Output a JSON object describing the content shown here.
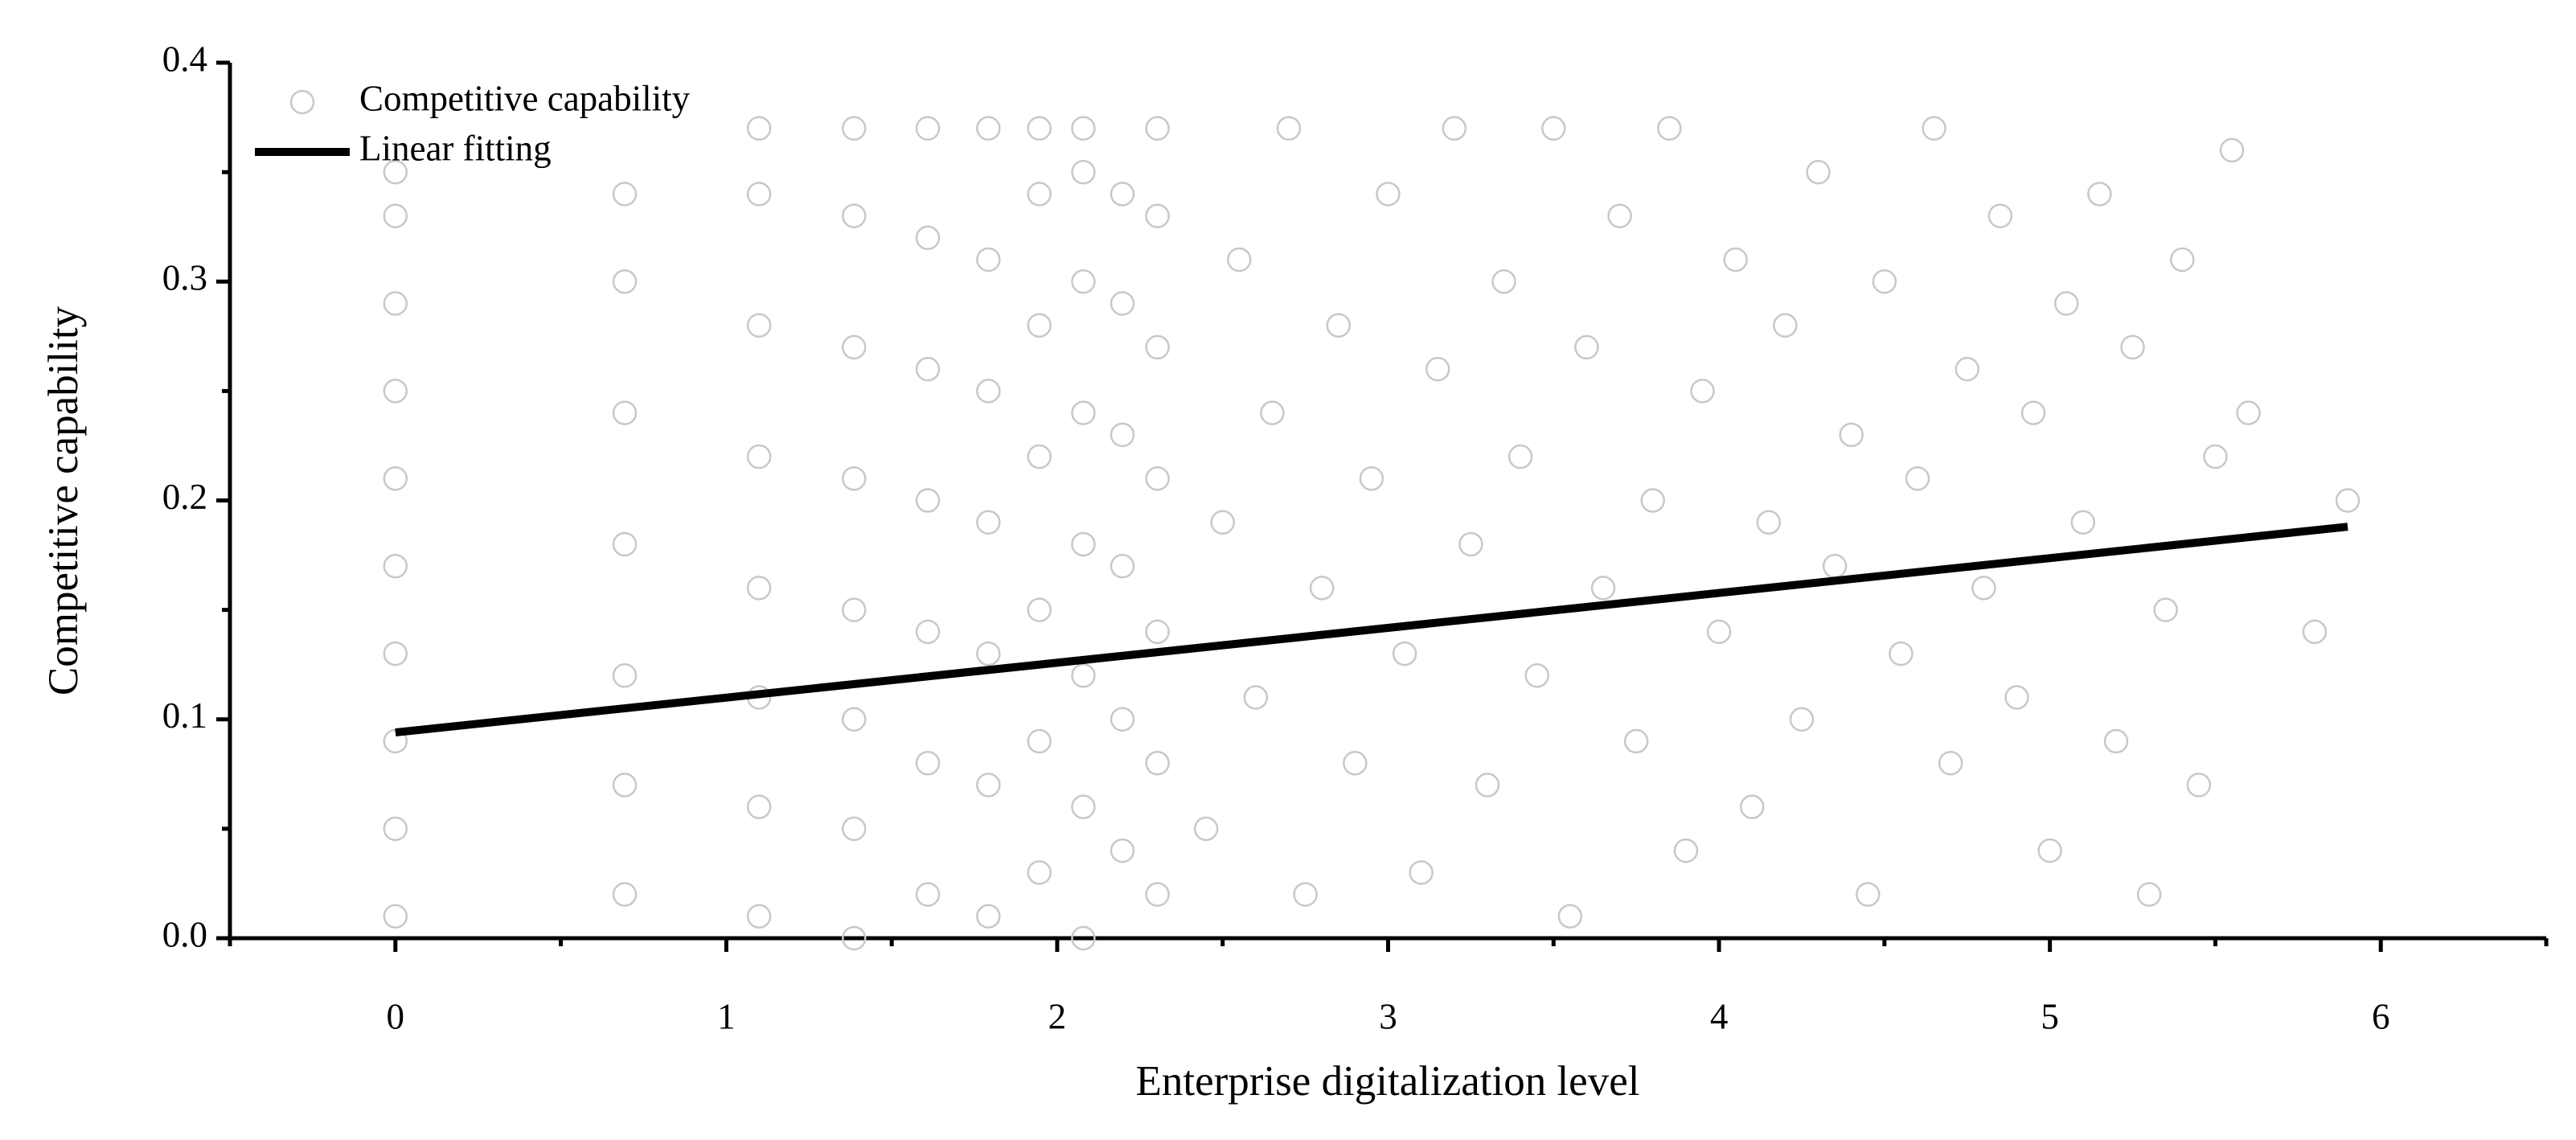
{
  "chart_data": {
    "type": "scatter",
    "xlabel": "Enterprise digitalization level",
    "ylabel": "Competitive capability",
    "xlim": [
      -0.5,
      6.5
    ],
    "xticks": [
      0,
      1,
      2,
      3,
      4,
      5,
      6
    ],
    "x_minor_ticks": [
      -0.5,
      0.5,
      1.5,
      2.5,
      3.5,
      4.5,
      5.5,
      6.5
    ],
    "ylim": [
      0,
      0.4
    ],
    "yticks": [
      {
        "value": 0,
        "label": "0.0"
      },
      0.1,
      0.2,
      0.3,
      0.4
    ],
    "y_minor_ticks": [
      0.05,
      0.15,
      0.25,
      0.35
    ],
    "legend": "upper left",
    "series": [
      {
        "name": "Competitive capability",
        "type": "scatter",
        "color": "#c8c8c8",
        "x": [
          0,
          0,
          0,
          0,
          0,
          0,
          0,
          0,
          0,
          0,
          0.693,
          0.693,
          0.693,
          0.693,
          0.693,
          0.693,
          0.693,
          1.099,
          1.099,
          1.099,
          1.099,
          1.099,
          1.099,
          1.099,
          1.099,
          1.386,
          1.386,
          1.386,
          1.386,
          1.386,
          1.386,
          1.386,
          1.386,
          1.609,
          1.609,
          1.609,
          1.609,
          1.609,
          1.609,
          1.609,
          1.792,
          1.792,
          1.792,
          1.792,
          1.792,
          1.792,
          1.792,
          1.946,
          1.946,
          1.946,
          1.946,
          1.946,
          1.946,
          1.946,
          2.079,
          2.079,
          2.079,
          2.079,
          2.079,
          2.079,
          2.079,
          2.079,
          2.197,
          2.197,
          2.197,
          2.197,
          2.197,
          2.197,
          2.303,
          2.303,
          2.303,
          2.303,
          2.303,
          2.303,
          2.303,
          2.45,
          2.5,
          2.55,
          2.6,
          2.65,
          2.7,
          2.75,
          2.8,
          2.85,
          2.9,
          2.95,
          3.0,
          3.05,
          3.1,
          3.15,
          3.2,
          3.25,
          3.3,
          3.35,
          3.4,
          3.45,
          3.5,
          3.55,
          3.6,
          3.65,
          3.7,
          3.75,
          3.8,
          3.85,
          3.9,
          3.95,
          4.0,
          4.05,
          4.1,
          4.15,
          4.2,
          4.25,
          4.3,
          4.35,
          4.4,
          4.45,
          4.5,
          4.55,
          4.6,
          4.65,
          4.7,
          4.75,
          4.8,
          4.85,
          4.9,
          4.95,
          5.0,
          5.05,
          5.1,
          5.15,
          5.2,
          5.25,
          5.3,
          5.35,
          5.4,
          5.45,
          5.5,
          5.55,
          5.6,
          5.8,
          5.9
        ],
        "values": [
          0.01,
          0.05,
          0.09,
          0.13,
          0.17,
          0.21,
          0.25,
          0.29,
          0.33,
          0.35,
          0.02,
          0.07,
          0.12,
          0.18,
          0.24,
          0.3,
          0.34,
          0.01,
          0.06,
          0.11,
          0.16,
          0.22,
          0.28,
          0.34,
          0.37,
          0.0,
          0.05,
          0.1,
          0.15,
          0.21,
          0.27,
          0.33,
          0.37,
          0.02,
          0.08,
          0.14,
          0.2,
          0.26,
          0.32,
          0.37,
          0.01,
          0.07,
          0.13,
          0.19,
          0.25,
          0.31,
          0.37,
          0.03,
          0.09,
          0.15,
          0.22,
          0.28,
          0.34,
          0.37,
          0.0,
          0.06,
          0.12,
          0.18,
          0.24,
          0.3,
          0.35,
          0.37,
          0.04,
          0.1,
          0.17,
          0.23,
          0.29,
          0.34,
          0.02,
          0.08,
          0.14,
          0.21,
          0.27,
          0.33,
          0.37,
          0.05,
          0.19,
          0.31,
          0.11,
          0.24,
          0.37,
          0.02,
          0.16,
          0.28,
          0.08,
          0.21,
          0.34,
          0.13,
          0.03,
          0.26,
          0.37,
          0.18,
          0.07,
          0.3,
          0.22,
          0.12,
          0.37,
          0.01,
          0.27,
          0.16,
          0.33,
          0.09,
          0.2,
          0.37,
          0.04,
          0.25,
          0.14,
          0.31,
          0.06,
          0.19,
          0.28,
          0.1,
          0.35,
          0.17,
          0.23,
          0.02,
          0.3,
          0.13,
          0.21,
          0.37,
          0.08,
          0.26,
          0.16,
          0.33,
          0.11,
          0.24,
          0.04,
          0.29,
          0.19,
          0.34,
          0.09,
          0.27,
          0.02,
          0.15,
          0.31,
          0.07,
          0.22,
          0.36,
          0.24,
          0.14,
          0.2
        ]
      },
      {
        "name": "Linear fitting",
        "type": "line",
        "color": "#000000",
        "x": [
          0,
          5.9
        ],
        "values": [
          0.094,
          0.188
        ]
      }
    ]
  }
}
